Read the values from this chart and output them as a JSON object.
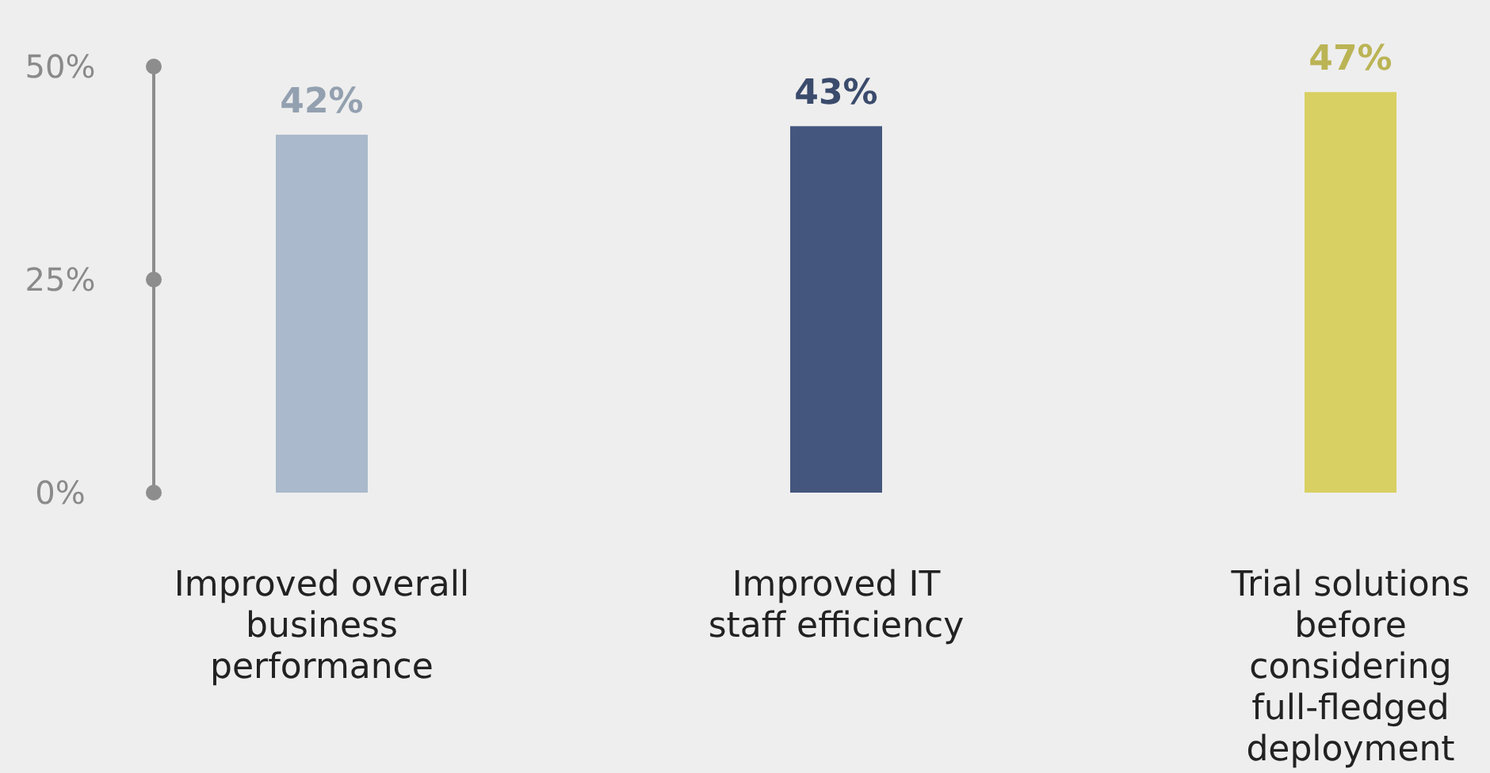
{
  "chart_data": {
    "type": "bar",
    "categories": [
      "Improved overall business performance",
      "Improved IT staff efficiency",
      "Trial solutions before considering full-fledged deployment"
    ],
    "values": [
      42,
      43,
      47
    ],
    "colors": [
      "#aab9cb",
      "#44567d",
      "#d8d062"
    ],
    "ylim": [
      0,
      50
    ],
    "yticks": [
      {
        "value": 0,
        "label": "0%"
      },
      {
        "value": 25,
        "label": "25%"
      },
      {
        "value": 50,
        "label": "50%"
      }
    ],
    "value_labels": [
      "42%",
      "43%",
      "47%"
    ],
    "grid": false
  }
}
